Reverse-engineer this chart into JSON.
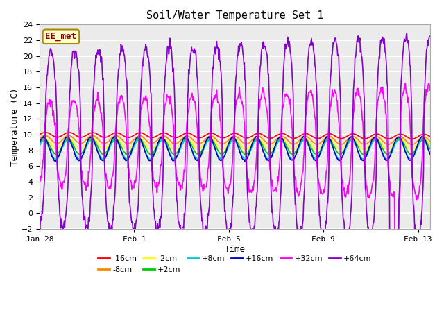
{
  "title": "Soil/Water Temperature Set 1",
  "xlabel": "Time",
  "ylabel": "Temperature (C)",
  "ylim": [
    -2,
    24
  ],
  "yticks": [
    -2,
    0,
    2,
    4,
    6,
    8,
    10,
    12,
    14,
    16,
    18,
    20,
    22,
    24
  ],
  "plot_bg_color": "#ebebeb",
  "annotation_text": "EE_met",
  "annotation_bg": "#ffffcc",
  "annotation_border": "#aa8800",
  "series": {
    "-16cm": {
      "color": "#ff0000",
      "base": 10.0,
      "amplitude": 0.3,
      "phase": 0.0,
      "trend": -0.015
    },
    "-8cm": {
      "color": "#ff8800",
      "base": 9.4,
      "amplitude": 0.5,
      "phase": 0.1,
      "trend": -0.01
    },
    "-2cm": {
      "color": "#ffff00",
      "base": 8.9,
      "amplitude": 0.7,
      "phase": 0.2,
      "trend": -0.005
    },
    "+2cm": {
      "color": "#00cc00",
      "base": 8.5,
      "amplitude": 1.0,
      "phase": 0.3,
      "trend": 0.0
    },
    "+8cm": {
      "color": "#00cccc",
      "base": 8.1,
      "amplitude": 1.2,
      "phase": 0.4,
      "trend": 0.0
    },
    "+16cm": {
      "color": "#0000cc",
      "base": 8.2,
      "amplitude": 1.5,
      "phase": 0.5,
      "trend": 0.002
    },
    "+32cm": {
      "color": "#ff00ff",
      "base": 9.0,
      "amplitude": 7.0,
      "phase": -1.2,
      "trend": 0.0
    },
    "+64cm": {
      "color": "#8800cc",
      "base": 9.5,
      "amplitude": 13.0,
      "phase": -1.5,
      "trend": 0.0
    }
  },
  "legend_order": [
    "-16cm",
    "-8cm",
    "-2cm",
    "+2cm",
    "+8cm",
    "+16cm",
    "+32cm",
    "+64cm"
  ],
  "xtick_labels": [
    "Jan 28",
    "Feb 1",
    "Feb 5",
    "Feb 9",
    "Feb 13"
  ],
  "xtick_positions": [
    0,
    4,
    8,
    12,
    16
  ]
}
